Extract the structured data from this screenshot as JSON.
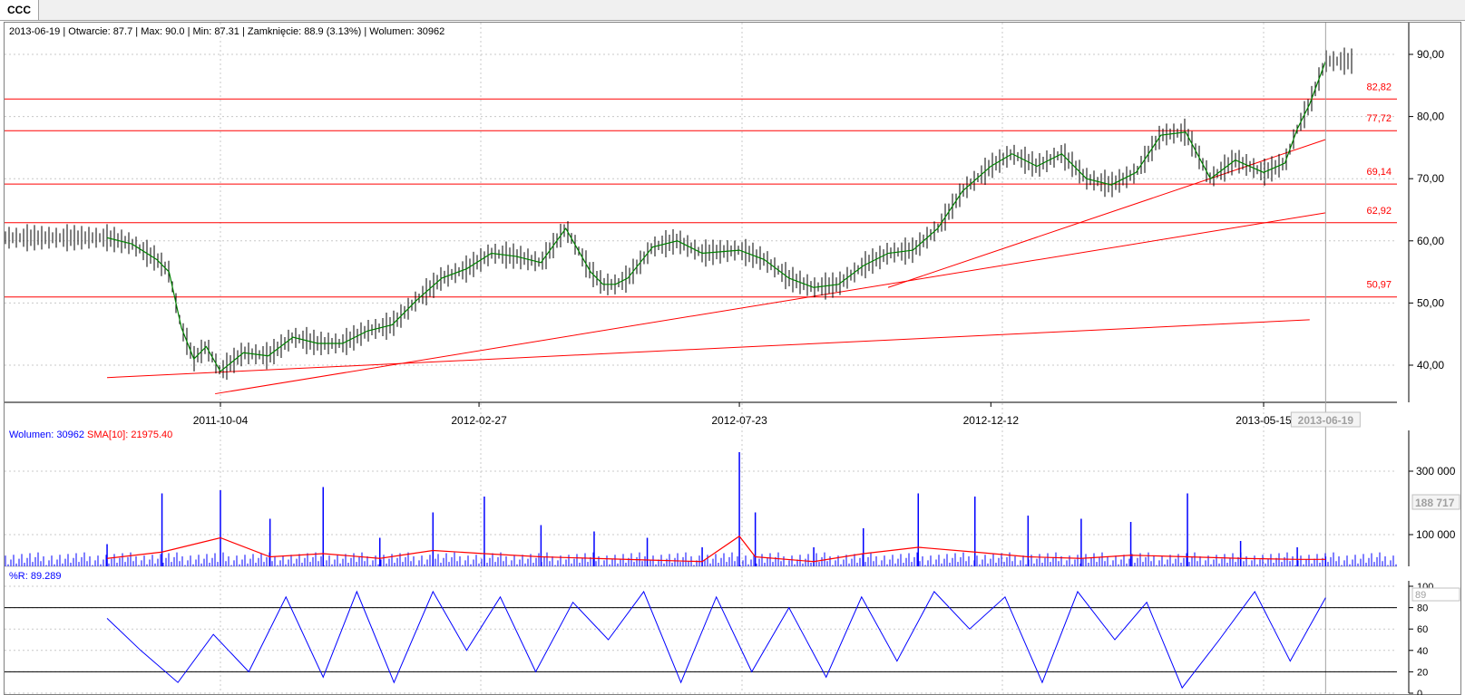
{
  "tab": {
    "label": "CCC"
  },
  "header": {
    "date": "2013-06-19",
    "open_label": "Otwarcie",
    "open": "87.7",
    "max_label": "Max",
    "max": "90.0",
    "min_label": "Min",
    "min": "87.31",
    "close_label": "Zamknięcie",
    "close": "88.9",
    "change": "(3.13%)",
    "volume_label": "Wolumen",
    "volume": "30962"
  },
  "volume_header": {
    "label": "Wolumen",
    "value": "30962",
    "sma_label": "SMA[10]",
    "sma_value": "21975.40"
  },
  "wr_header": {
    "label": "%R",
    "value": "89.289"
  },
  "colors": {
    "price": "#000000",
    "sma": "#008000",
    "support": "#ff0000",
    "volume": "#0000ff",
    "volume_sma": "#ff0000",
    "wr": "#0000ff",
    "grid": "#c8c8c8"
  },
  "chart_data": [
    {
      "type": "line",
      "panel": "price",
      "x_ticks": [
        "2011-10-04",
        "2012-02-27",
        "2012-07-23",
        "2012-12-12",
        "2013-05-15"
      ],
      "cursor_date": "2013-06-19",
      "y_ticks": [
        "90,00",
        "80,00",
        "70,00",
        "60,00",
        "50,00",
        "40,00"
      ],
      "ylim": [
        35,
        93
      ],
      "horizontal_levels": [
        {
          "value": 82.82,
          "label": "82,82"
        },
        {
          "value": 77.72,
          "label": "77,72"
        },
        {
          "value": 69.14,
          "label": "69,14"
        },
        {
          "value": 62.92,
          "label": "62,92"
        },
        {
          "value": 50.97,
          "label": "50,97"
        }
      ],
      "trend_lines": [
        {
          "start": [
            "2011-08-01",
            38.0
          ],
          "end": [
            "2013-06-10",
            47.3
          ]
        },
        {
          "start": [
            "2011-10-01",
            35.4
          ],
          "end": [
            "2013-06-19",
            64.5
          ]
        },
        {
          "start": [
            "2012-10-15",
            52.5
          ],
          "end": [
            "2013-06-19",
            76.3
          ]
        }
      ],
      "series": [
        {
          "x": [
            "2011-08-01",
            "2011-08-15",
            "2011-08-29",
            "2011-09-05",
            "2011-09-12",
            "2011-09-19",
            "2011-09-26",
            "2011-10-04",
            "2011-10-17",
            "2011-10-31",
            "2011-11-14",
            "2011-11-28",
            "2011-12-12",
            "2011-12-26",
            "2012-01-09",
            "2012-01-23",
            "2012-02-06",
            "2012-02-20",
            "2012-03-05",
            "2012-03-19",
            "2012-04-02",
            "2012-04-16",
            "2012-04-30",
            "2012-05-07",
            "2012-05-14",
            "2012-05-21",
            "2012-06-04",
            "2012-06-18",
            "2012-07-02",
            "2012-07-23",
            "2012-08-06",
            "2012-08-20",
            "2012-09-03",
            "2012-09-17",
            "2012-10-01",
            "2012-10-15",
            "2012-10-29",
            "2012-11-12",
            "2012-11-26",
            "2012-12-12",
            "2012-12-24",
            "2013-01-07",
            "2013-01-21",
            "2013-02-04",
            "2013-02-18",
            "2013-03-04",
            "2013-03-18",
            "2013-04-01",
            "2013-04-15",
            "2013-04-29",
            "2013-05-15",
            "2013-05-27",
            "2013-06-03",
            "2013-06-10",
            "2013-06-19"
          ],
          "values": [
            60.5,
            59.5,
            57.0,
            55.0,
            46.0,
            41.0,
            43.0,
            39.0,
            42.0,
            41.5,
            44.5,
            43.5,
            43.5,
            45.5,
            46.5,
            50.5,
            54.0,
            55.5,
            58.0,
            57.5,
            56.5,
            62.0,
            55.0,
            53.0,
            53.0,
            54.0,
            59.0,
            60.0,
            58.0,
            58.5,
            57.0,
            54.0,
            52.5,
            53.0,
            56.0,
            58.0,
            58.5,
            62.0,
            68.0,
            72.0,
            74.0,
            72.0,
            74.0,
            70.0,
            69.0,
            71.0,
            77.0,
            77.5,
            70.0,
            73.0,
            71.0,
            72.5,
            78.0,
            82.0,
            88.9
          ]
        }
      ]
    },
    {
      "type": "bar",
      "panel": "volume",
      "x_ticks": [
        "2011-10-04",
        "2012-02-27",
        "2012-07-23",
        "2012-12-12",
        "2013-05-15"
      ],
      "y_ticks": [
        "300 000",
        "100 000"
      ],
      "cursor_value": "188 717",
      "ylim": [
        0,
        370000
      ],
      "series": [
        {
          "x": [
            "2011-08-01",
            "2011-09-01",
            "2011-10-04",
            "2011-11-01",
            "2011-12-01",
            "2012-01-02",
            "2012-02-01",
            "2012-03-01",
            "2012-04-02",
            "2012-05-02",
            "2012-06-01",
            "2012-07-02",
            "2012-07-23",
            "2012-08-01",
            "2012-09-03",
            "2012-10-01",
            "2012-11-01",
            "2012-12-03",
            "2013-01-02",
            "2013-02-01",
            "2013-03-01",
            "2013-04-02",
            "2013-05-02",
            "2013-06-03",
            "2013-06-19"
          ],
          "values": [
            70000,
            230000,
            240000,
            150000,
            250000,
            90000,
            170000,
            220000,
            130000,
            110000,
            90000,
            60000,
            360000,
            170000,
            60000,
            120000,
            230000,
            220000,
            160000,
            150000,
            140000,
            230000,
            80000,
            60000,
            30962
          ]
        },
        {
          "name": "SMA[10]",
          "x": [
            "2011-08-01",
            "2011-09-01",
            "2011-10-04",
            "2011-11-01",
            "2011-12-01",
            "2012-01-02",
            "2012-02-01",
            "2012-03-01",
            "2012-04-02",
            "2012-05-02",
            "2012-06-01",
            "2012-07-02",
            "2012-07-23",
            "2012-08-01",
            "2012-09-03",
            "2012-10-01",
            "2012-11-01",
            "2012-12-03",
            "2013-01-02",
            "2013-02-01",
            "2013-03-01",
            "2013-04-02",
            "2013-05-02",
            "2013-06-03",
            "2013-06-19"
          ],
          "values": [
            25000,
            45000,
            90000,
            30000,
            40000,
            25000,
            50000,
            40000,
            30000,
            25000,
            20000,
            15000,
            95000,
            30000,
            15000,
            40000,
            60000,
            45000,
            30000,
            25000,
            35000,
            30000,
            25000,
            22000,
            21975
          ]
        }
      ]
    },
    {
      "type": "line",
      "panel": "williams_r",
      "y_ticks": [
        "100",
        "80",
        "60",
        "40",
        "20",
        "0"
      ],
      "cursor_value": "89",
      "levels": [
        80,
        20
      ],
      "ylim": [
        0,
        100
      ],
      "series": [
        {
          "x": [
            "2011-08-01",
            "2011-08-20",
            "2011-09-10",
            "2011-09-30",
            "2011-10-20",
            "2011-11-10",
            "2011-12-01",
            "2011-12-20",
            "2012-01-10",
            "2012-02-01",
            "2012-02-20",
            "2012-03-10",
            "2012-03-30",
            "2012-04-20",
            "2012-05-10",
            "2012-05-30",
            "2012-06-20",
            "2012-07-10",
            "2012-07-30",
            "2012-08-20",
            "2012-09-10",
            "2012-09-30",
            "2012-10-20",
            "2012-11-10",
            "2012-11-30",
            "2012-12-20",
            "2013-01-10",
            "2013-01-30",
            "2013-02-20",
            "2013-03-10",
            "2013-03-30",
            "2013-04-20",
            "2013-05-10",
            "2013-05-30",
            "2013-06-19"
          ],
          "values": [
            70,
            40,
            10,
            55,
            20,
            90,
            15,
            95,
            10,
            95,
            40,
            90,
            20,
            85,
            50,
            95,
            10,
            90,
            20,
            80,
            15,
            90,
            30,
            95,
            60,
            90,
            10,
            95,
            50,
            85,
            5,
            50,
            95,
            30,
            89.3
          ]
        }
      ]
    }
  ]
}
